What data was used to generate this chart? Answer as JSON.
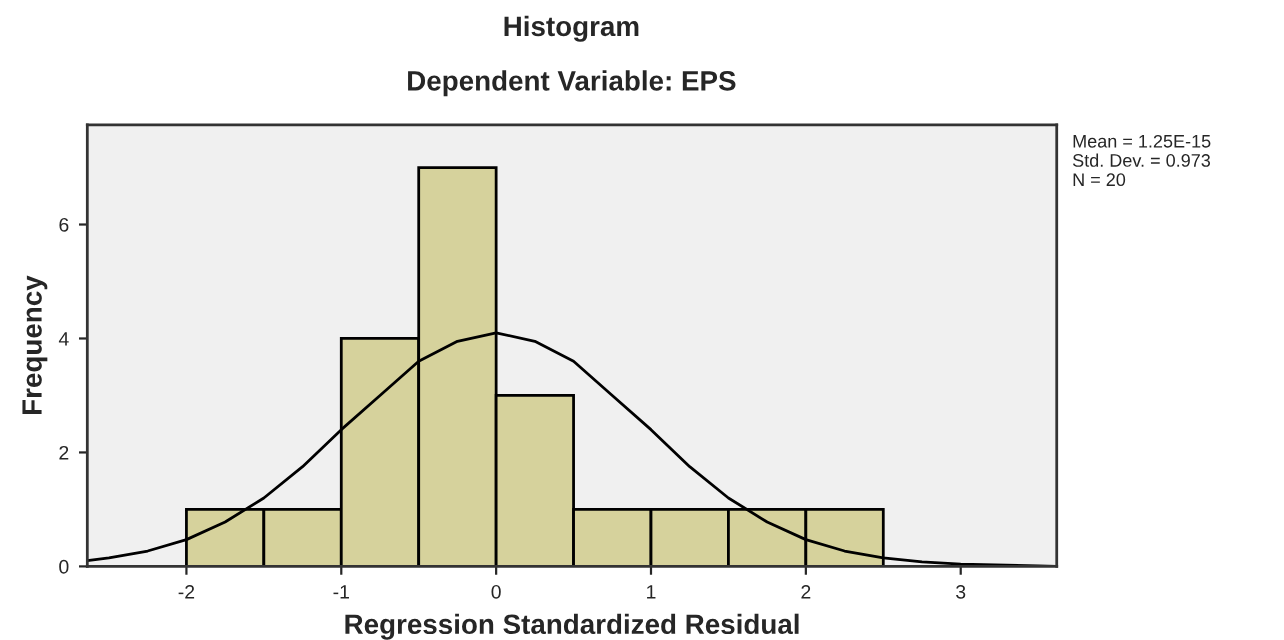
{
  "chart_data": {
    "type": "histogram",
    "title": "Histogram",
    "subtitle": "Dependent Variable: EPS",
    "xlabel": "Regression Standardized Residual",
    "ylabel": "Frequency",
    "series": [
      {
        "color": "#d6d29c",
        "bins": [
          -2,
          -1.5,
          -1,
          -0.5,
          0,
          0.5,
          1,
          1.5,
          2,
          2.5
        ],
        "values": [
          1,
          1,
          4,
          7,
          3,
          1,
          1,
          1,
          1
        ]
      },
      {
        "type": "line",
        "color": "#000000",
        "x": [
          -2.64,
          -2.5,
          -2.25,
          -2,
          -1.75,
          -1.5,
          -1.25,
          -1,
          -0.75,
          -0.5,
          -0.25,
          0,
          0.25,
          0.5,
          0.75,
          1,
          1.25,
          1.5,
          1.75,
          2,
          2.25,
          2.5,
          2.75,
          3,
          3.5,
          3.62
        ],
        "values": [
          0.1,
          0.15,
          0.27,
          0.47,
          0.78,
          1.2,
          1.75,
          2.4,
          3.0,
          3.6,
          3.95,
          4.1,
          3.95,
          3.6,
          3.0,
          2.4,
          1.75,
          1.2,
          0.78,
          0.47,
          0.27,
          0.15,
          0.08,
          0.04,
          0.01,
          0
        ]
      }
    ],
    "annotations": [
      "Mean = 1.25E-15",
      "Std. Dev. = 0.973",
      "N = 20"
    ],
    "xlim": [
      -2.64,
      3.62
    ],
    "ylim": [
      0,
      7.75
    ],
    "xticks": [
      -2,
      -1,
      0,
      1,
      2,
      3
    ],
    "yticks": [
      0,
      2,
      4,
      6
    ],
    "grid": false,
    "legend": false
  }
}
